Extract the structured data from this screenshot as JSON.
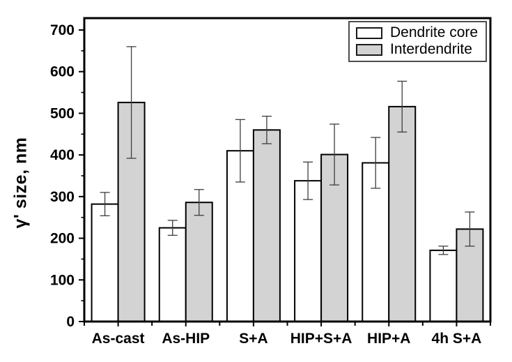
{
  "figure": {
    "background": "#ffffff"
  },
  "chart_data": {
    "type": "bar",
    "title": "",
    "xlabel": "",
    "ylabel": "γ' size, nm",
    "ylim": [
      0,
      700
    ],
    "yticks": [
      0,
      100,
      200,
      300,
      400,
      500,
      600,
      700
    ],
    "yminor_ticks": [
      50,
      150,
      250,
      350,
      450,
      550,
      650
    ],
    "grid": "off",
    "legend_position": "top-right",
    "error_bars": "symmetric, shown on every bar",
    "categories": [
      "As-cast",
      "As-HIP",
      "S+A",
      "HIP+S+A",
      "HIP+A",
      "4h S+A"
    ],
    "series": [
      {
        "name": "Dendrite core",
        "fill": "#ffffff",
        "stroke": "#000000",
        "values": [
          282,
          225,
          410,
          338,
          381,
          171
        ],
        "errors": [
          28,
          18,
          75,
          45,
          61,
          10
        ]
      },
      {
        "name": "Interdendrite",
        "fill": "#d3d3d3",
        "stroke": "#000000",
        "values": [
          526,
          286,
          460,
          401,
          516,
          222
        ],
        "errors": [
          134,
          31,
          33,
          73,
          61,
          41
        ]
      }
    ],
    "style": {
      "frame_color": "#000000",
      "tick_color": "#000000",
      "error_bar_color": "#3d3d3d",
      "legend_border_color": "#4d4d4d",
      "text_color": "#000000"
    }
  }
}
